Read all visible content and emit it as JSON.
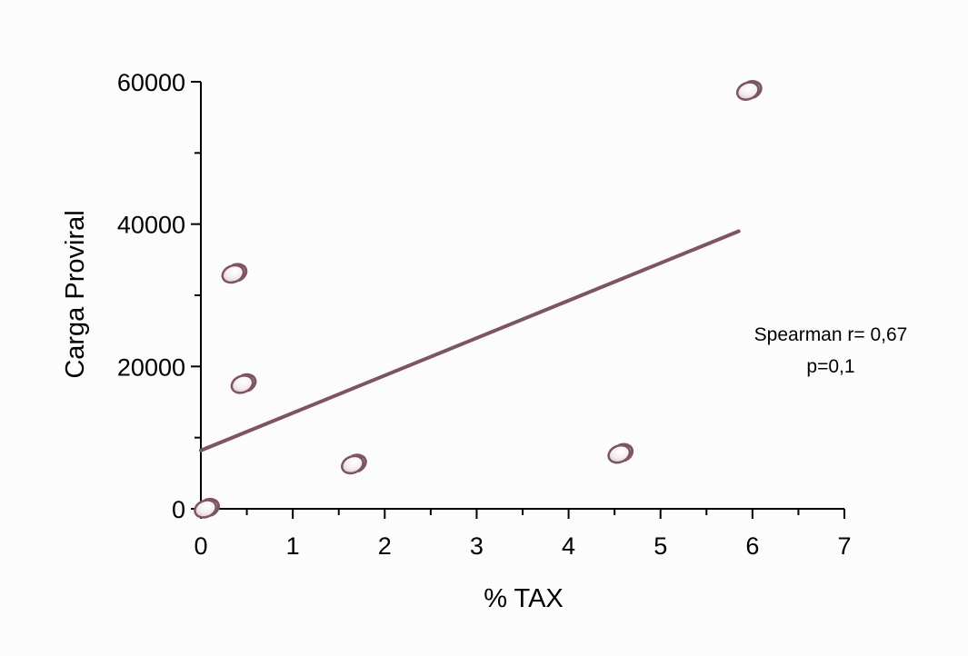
{
  "chart_data": {
    "type": "scatter",
    "xlabel": "% TAX",
    "ylabel": "Carga Proviral",
    "xlim": [
      0,
      7
    ],
    "ylim": [
      0,
      60000
    ],
    "x_ticks": [
      0,
      1,
      2,
      3,
      4,
      5,
      6,
      7
    ],
    "y_ticks": [
      0,
      20000,
      40000,
      60000
    ],
    "x_minor_step": 0.5,
    "y_minor_step": 10000,
    "grid": false,
    "points": [
      {
        "x": 0.05,
        "y": 0
      },
      {
        "x": 0.35,
        "y": 33000
      },
      {
        "x": 0.45,
        "y": 17500
      },
      {
        "x": 1.65,
        "y": 6200
      },
      {
        "x": 4.55,
        "y": 7700
      },
      {
        "x": 5.95,
        "y": 58700
      }
    ],
    "trendline": {
      "x": [
        0,
        5.85
      ],
      "y": [
        8200,
        39000
      ]
    },
    "annotations": [
      "Spearman r= 0,67",
      "p=0,1"
    ],
    "colors": {
      "line": "#7d5466",
      "marker_edge": "#7d5466",
      "axis": "#000000"
    }
  }
}
